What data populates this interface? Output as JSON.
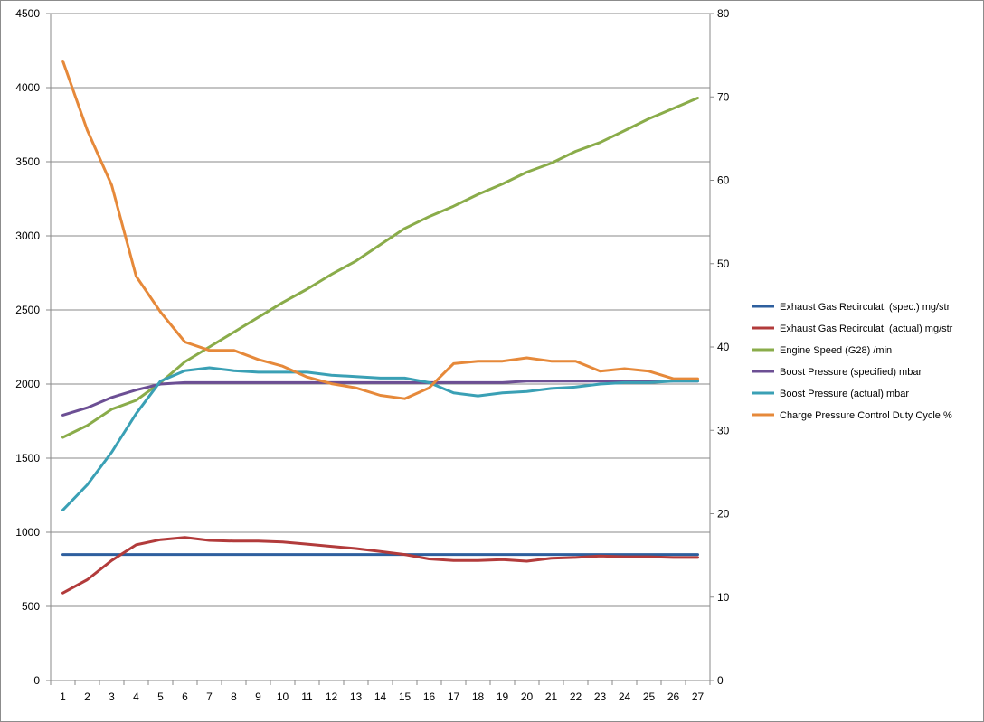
{
  "chart_data": {
    "type": "line",
    "title": "",
    "xlabel": "",
    "ylabel": "",
    "categories": [
      1,
      2,
      3,
      4,
      5,
      6,
      7,
      8,
      9,
      10,
      11,
      12,
      13,
      14,
      15,
      16,
      17,
      18,
      19,
      20,
      21,
      22,
      23,
      24,
      25,
      26,
      27
    ],
    "left_axis": {
      "min": 0,
      "max": 4500,
      "ticks": [
        0,
        500,
        1000,
        1500,
        2000,
        2500,
        3000,
        3500,
        4000,
        4500
      ]
    },
    "right_axis": {
      "min": 0,
      "max": 80,
      "ticks": [
        0,
        10,
        20,
        30,
        40,
        50,
        60,
        70,
        80
      ]
    },
    "grid": true,
    "legend_position": "right",
    "series": [
      {
        "name": "Exhaust Gas Recirculat. (spec.)  mg/str",
        "axis": "left",
        "color": "#2e5f9e",
        "values": [
          850,
          850,
          850,
          850,
          850,
          850,
          850,
          850,
          850,
          850,
          850,
          850,
          850,
          850,
          850,
          850,
          850,
          850,
          850,
          850,
          850,
          850,
          850,
          850,
          850,
          850,
          850
        ]
      },
      {
        "name": "Exhaust Gas Recirculat. (actual)  mg/str",
        "axis": "left",
        "color": "#b23b3b",
        "values": [
          590,
          680,
          810,
          915,
          950,
          965,
          945,
          940,
          940,
          935,
          920,
          905,
          890,
          870,
          850,
          820,
          810,
          810,
          815,
          805,
          825,
          830,
          840,
          835,
          835,
          830,
          830
        ]
      },
      {
        "name": "Engine Speed (G28)  /min",
        "axis": "left",
        "color": "#8aac4a",
        "values": [
          1640,
          1720,
          1830,
          1890,
          2010,
          2150,
          2250,
          2350,
          2450,
          2550,
          2640,
          2740,
          2830,
          2940,
          3050,
          3130,
          3200,
          3280,
          3350,
          3430,
          3490,
          3570,
          3630,
          3710,
          3790,
          3860,
          3930
        ]
      },
      {
        "name": "Boost Pressure (specified)  mbar",
        "axis": "left",
        "color": "#6c4f94",
        "values": [
          1790,
          1840,
          1910,
          1960,
          2000,
          2010,
          2010,
          2010,
          2010,
          2010,
          2010,
          2010,
          2010,
          2010,
          2010,
          2010,
          2010,
          2010,
          2010,
          2020,
          2020,
          2020,
          2020,
          2020,
          2020,
          2020,
          2020
        ]
      },
      {
        "name": "Boost Pressure (actual)  mbar",
        "axis": "left",
        "color": "#3aa0b5",
        "values": [
          1150,
          1320,
          1540,
          1800,
          2020,
          2090,
          2110,
          2090,
          2080,
          2080,
          2080,
          2060,
          2050,
          2040,
          2040,
          2010,
          1940,
          1920,
          1940,
          1950,
          1970,
          1980,
          2000,
          2010,
          2010,
          2020,
          2020
        ]
      },
      {
        "name": "Charge Pressure Control Duty Cycle  %",
        "axis": "right",
        "color": "#e6893a",
        "values": [
          74.3,
          66,
          59.4,
          48.5,
          44.2,
          40.6,
          39.6,
          39.6,
          38.5,
          37.7,
          36.4,
          35.6,
          35.1,
          34.2,
          33.8,
          35.1,
          38.0,
          38.3,
          38.3,
          38.7,
          38.3,
          38.3,
          37.1,
          37.4,
          37.1,
          36.2,
          36.2
        ]
      }
    ]
  }
}
